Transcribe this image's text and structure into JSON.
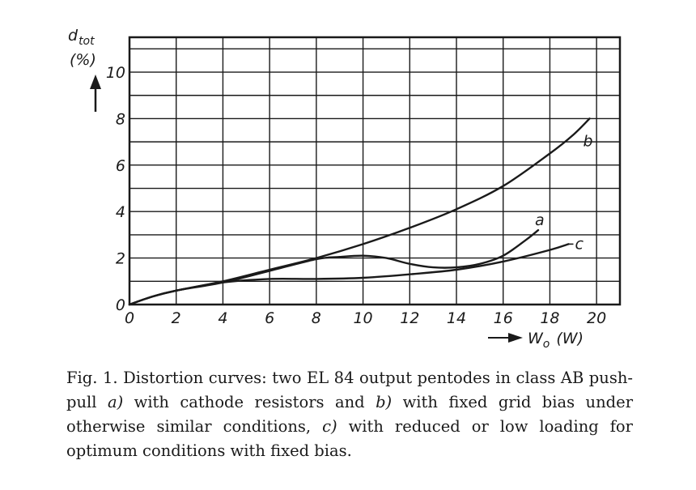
{
  "chart_data": {
    "type": "line",
    "ylabel_line1": "d",
    "ylabel_sub": "tot",
    "ylabel_line2": "(%)",
    "xlabel": "W",
    "xlabel_sub": "o",
    "xlabel_unit": "(W)",
    "xlim": [
      0,
      21
    ],
    "ylim": [
      0,
      11.5
    ],
    "grid": true,
    "x_ticks": [
      "0",
      "2",
      "4",
      "6",
      "8",
      "10",
      "12",
      "14",
      "16",
      "18",
      "20"
    ],
    "y_ticks": [
      "0",
      "2",
      "4",
      "6",
      "8",
      "10"
    ],
    "series": [
      {
        "name": "a",
        "x": [
          0,
          1,
          2,
          4,
          6,
          8,
          9,
          10,
          11,
          12,
          13,
          14,
          15,
          16,
          17,
          17.5
        ],
        "y": [
          0,
          0.35,
          0.6,
          0.95,
          1.45,
          1.95,
          2.05,
          2.1,
          2.0,
          1.75,
          1.6,
          1.6,
          1.75,
          2.1,
          2.8,
          3.2
        ]
      },
      {
        "name": "b",
        "x": [
          0,
          1,
          2,
          4,
          6,
          8,
          10,
          12,
          14,
          16,
          18,
          19,
          19.7
        ],
        "y": [
          0,
          0.35,
          0.6,
          1.0,
          1.5,
          2.0,
          2.6,
          3.3,
          4.1,
          5.1,
          6.5,
          7.3,
          8.0
        ]
      },
      {
        "name": "c",
        "x": [
          0,
          1,
          2,
          4,
          6,
          8,
          10,
          12,
          14,
          16,
          18,
          18.8
        ],
        "y": [
          0,
          0.35,
          0.6,
          0.95,
          1.1,
          1.1,
          1.15,
          1.3,
          1.5,
          1.85,
          2.35,
          2.6
        ]
      }
    ]
  },
  "caption": {
    "fig_label": "Fig. 1.",
    "text_1": "Distortion curves: two EL 84 output pentodes in class AB push-pull",
    "a_label": "a)",
    "text_2": "with cathode resistors and",
    "b_label": "b)",
    "text_3": "with fixed grid bias under otherwise similar conditions,",
    "c_label": "c)",
    "text_4": "with reduced or low loading for optimum conditions with fixed bias."
  }
}
